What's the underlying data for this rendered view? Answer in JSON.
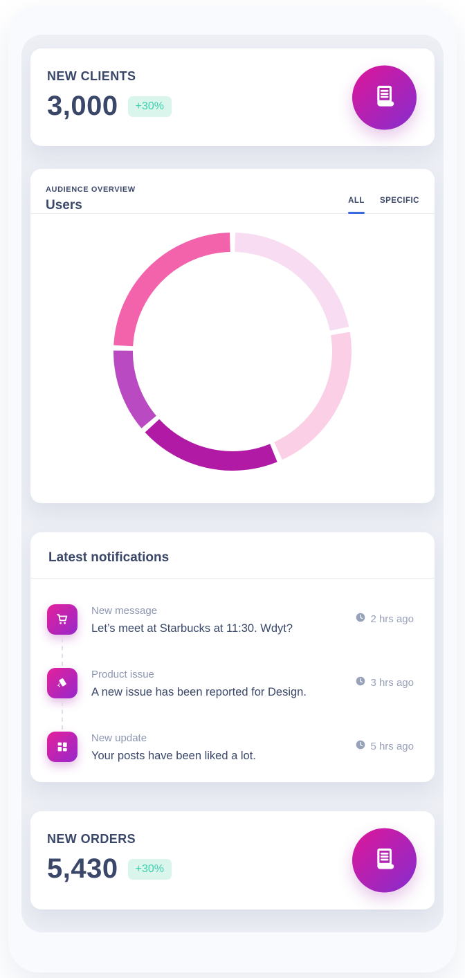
{
  "theme": {
    "accent_gradient_start": "#d6189e",
    "accent_gradient_end": "#8e2bc9",
    "badge_bg": "#d9f5ec",
    "badge_text": "#41d0ae",
    "tab_underline": "#3b6ade",
    "navy_text": "#3a4769",
    "muted_text": "#8d96b2",
    "content_bg": "#edeff5"
  },
  "new_clients": {
    "title": "NEW CLIENTS",
    "value": "3,000",
    "delta": "+30%",
    "icon": "receipt-icon"
  },
  "audience": {
    "kicker": "AUDIENCE OVERVIEW",
    "title": "Users",
    "tabs": [
      {
        "label": "ALL",
        "active": true
      },
      {
        "label": "SPECIFIC",
        "active": false
      }
    ]
  },
  "chart_data": {
    "type": "pie",
    "donut": true,
    "title": "Users",
    "subtitle": "AUDIENCE OVERVIEW",
    "legend": "none",
    "start_angle_deg": 0,
    "direction": "clockwise",
    "gap_deg": 2.6,
    "inner_radius_ratio": 0.84,
    "segments": [
      {
        "value": 22,
        "color": "#F7DCF2"
      },
      {
        "value": 21.5,
        "color": "#FBCFE5"
      },
      {
        "value": 20,
        "color": "#B11AA5"
      },
      {
        "value": 12,
        "color": "#B94AC2"
      },
      {
        "value": 24.5,
        "color": "#F263AC"
      }
    ]
  },
  "notifications": {
    "title": "Latest notifications",
    "items": [
      {
        "icon": "cart-icon",
        "title": "New message",
        "body": "Let’s meet at Starbucks at 11:30. Wdyt?",
        "time": "2 hrs ago"
      },
      {
        "icon": "report-card-icon",
        "title": "Product issue",
        "body": "A new issue has been reported for Design.",
        "time": "3 hrs ago"
      },
      {
        "icon": "grid-icon",
        "title": "New update",
        "body": "Your posts have been liked a lot.",
        "time": "5 hrs ago"
      }
    ]
  },
  "new_orders": {
    "title": "NEW ORDERS",
    "value": "5,430",
    "delta": "+30%",
    "icon": "receipt-icon"
  }
}
